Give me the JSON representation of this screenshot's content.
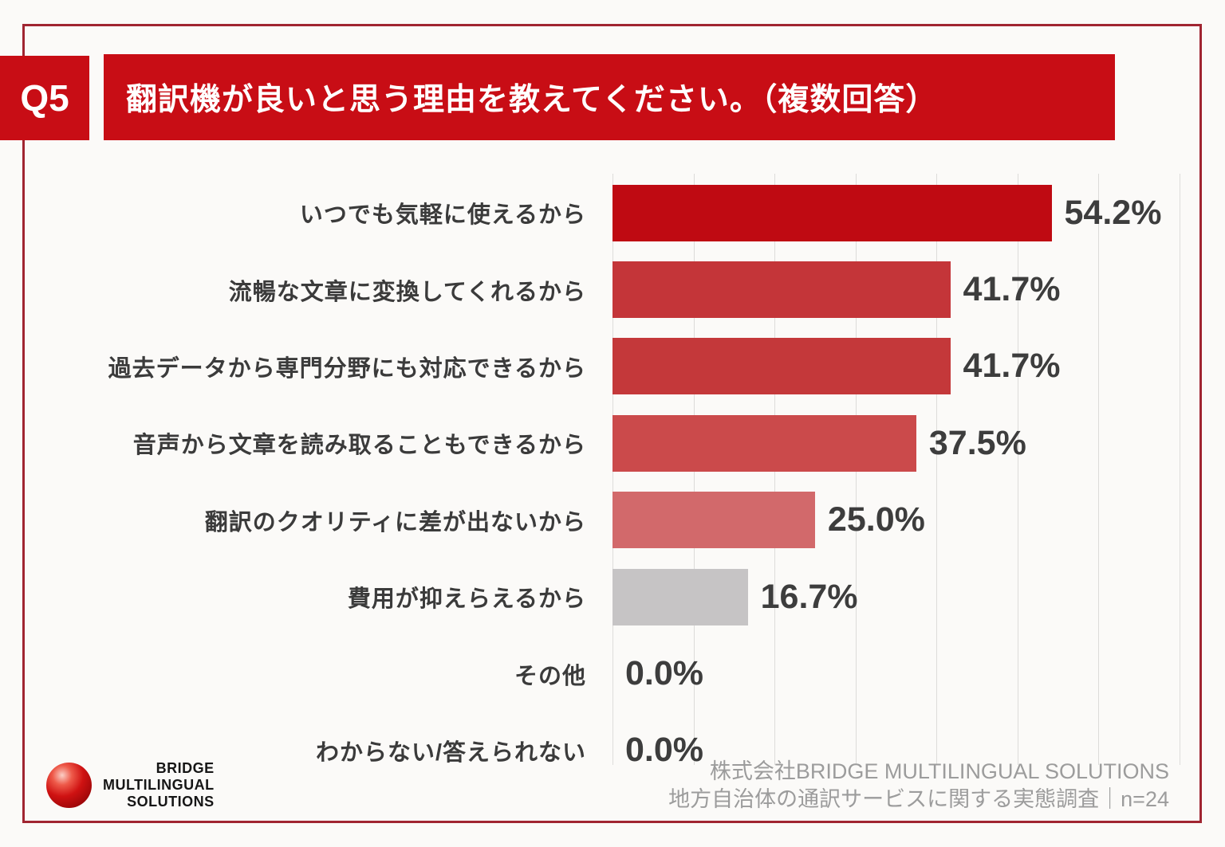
{
  "header": {
    "q_label": "Q5",
    "title": "翻訳機が良いと思う理由を教えてください。（複数回答）"
  },
  "colors": {
    "header_red": "#c80d15",
    "border_red": "#a02531",
    "gridline": "#dddcda",
    "category_text": "#3b3b3b",
    "value_text": "#3d3d3d",
    "footer_text": "#9c9c9c"
  },
  "chart_data": {
    "type": "bar",
    "orientation": "horizontal",
    "title": "翻訳機が良いと思う理由を教えてください。（複数回答）",
    "categories": [
      "いつでも気軽に使えるから",
      "流暢な文章に変換してくれるから",
      "過去データから専門分野にも対応できるから",
      "音声から文章を読み取ることもできるから",
      "翻訳のクオリティに差が出ないから",
      "費用が抑えらえるから",
      "その他",
      "わからない/答えられない"
    ],
    "values": [
      54.2,
      41.7,
      41.7,
      37.5,
      25.0,
      16.7,
      0.0,
      0.0
    ],
    "value_labels": [
      "54.2%",
      "41.7%",
      "41.7%",
      "37.5%",
      "25.0%",
      "16.7%",
      "0.0%",
      "0.0%"
    ],
    "bar_colors": [
      "#bf0a12",
      "#c43539",
      "#c4383a",
      "#cb4a4b",
      "#d2696b",
      "#c6c4c5",
      "#c6c4c5",
      "#c6c4c5"
    ],
    "xlabel": "",
    "ylabel": "",
    "xlim": [
      0,
      70
    ],
    "grid": true,
    "gridline_interval": 10,
    "legend": false
  },
  "footer": {
    "company": "株式会社BRIDGE MULTILINGUAL SOLUTIONS",
    "survey": "地方自治体の通訳サービスに関する実態調査｜n=24"
  },
  "logo": {
    "line1": "BRIDGE",
    "line2": "MULTILINGUAL",
    "line3": "SOLUTIONS"
  }
}
